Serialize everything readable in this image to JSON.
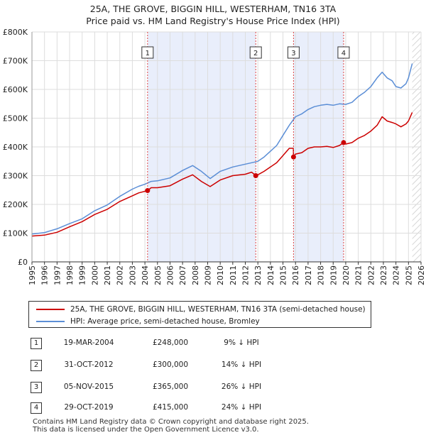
{
  "title_line1": "25A, THE GROVE, BIGGIN HILL, WESTERHAM, TN16 3TA",
  "title_line2": "Price paid vs. HM Land Registry's House Price Index (HPI)",
  "chart_data": {
    "type": "line",
    "title": "25A, THE GROVE, BIGGIN HILL, WESTERHAM, TN16 3TA — Price paid vs. HM Land Registry's House Price Index (HPI)",
    "xlabel": "",
    "ylabel": "",
    "xlim": [
      1995,
      2026
    ],
    "ylim": [
      0,
      800000
    ],
    "y_ticks": [
      0,
      100000,
      200000,
      300000,
      400000,
      500000,
      600000,
      700000,
      800000
    ],
    "y_tick_labels": [
      "£0",
      "£100K",
      "£200K",
      "£300K",
      "£400K",
      "£500K",
      "£600K",
      "£700K",
      "£800K"
    ],
    "x_ticks": [
      1995,
      1996,
      1997,
      1998,
      1999,
      2000,
      2001,
      2002,
      2003,
      2004,
      2005,
      2006,
      2007,
      2008,
      2009,
      2010,
      2011,
      2012,
      2013,
      2014,
      2015,
      2016,
      2017,
      2018,
      2019,
      2020,
      2021,
      2022,
      2023,
      2024,
      2025,
      2026
    ],
    "x_tick_labels": [
      "1995",
      "1996",
      "1997",
      "1998",
      "1999",
      "2000",
      "2001",
      "2002",
      "2003",
      "2004",
      "2005",
      "2006",
      "2007",
      "2008",
      "2009",
      "2010",
      "2011",
      "2012",
      "2013",
      "2014",
      "2015",
      "2016",
      "2017",
      "2018",
      "2019",
      "2020",
      "2021",
      "2022",
      "2023",
      "2024",
      "2025",
      "2026"
    ],
    "grid": true,
    "ownership_periods": [
      [
        2004.21,
        2012.83
      ],
      [
        2015.84,
        2019.83
      ]
    ],
    "projection_start": 2025.3,
    "series": [
      {
        "name": "25A, THE GROVE, BIGGIN HILL, WESTERHAM, TN16 3TA (semi-detached house)",
        "color": "#cc0000",
        "x": [
          1995.0,
          1996.0,
          1997.0,
          1998.0,
          1999.0,
          2000.0,
          2001.0,
          2002.0,
          2003.0,
          2003.5,
          2004.21,
          2004.5,
          2005.0,
          2006.0,
          2007.0,
          2007.8,
          2008.5,
          2009.2,
          2010.0,
          2011.0,
          2012.0,
          2012.5,
          2012.83,
          2013.0,
          2013.5,
          2014.0,
          2014.5,
          2015.0,
          2015.5,
          2015.83,
          2015.84,
          2016.0,
          2016.5,
          2017.0,
          2017.5,
          2018.0,
          2018.5,
          2019.0,
          2019.5,
          2019.83,
          2020.0,
          2020.5,
          2021.0,
          2021.5,
          2022.0,
          2022.5,
          2022.9,
          2023.3,
          2023.7,
          2024.0,
          2024.4,
          2024.8,
          2025.0,
          2025.3
        ],
        "values": [
          90000,
          93000,
          103000,
          122000,
          140000,
          165000,
          183000,
          210000,
          230000,
          240000,
          248000,
          258000,
          258000,
          265000,
          288000,
          303000,
          280000,
          262000,
          285000,
          300000,
          305000,
          312000,
          300000,
          303000,
          315000,
          330000,
          345000,
          370000,
          395000,
          395000,
          365000,
          375000,
          380000,
          395000,
          400000,
          400000,
          402000,
          398000,
          405000,
          415000,
          410000,
          415000,
          430000,
          440000,
          455000,
          475000,
          505000,
          490000,
          485000,
          480000,
          470000,
          480000,
          490000,
          520000
        ]
      },
      {
        "name": "HPI: Average price, semi-detached house, Bromley",
        "color": "#5b8ed6",
        "x": [
          1995.0,
          1996.0,
          1997.0,
          1998.0,
          1999.0,
          2000.0,
          2001.0,
          2002.0,
          2003.0,
          2003.5,
          2004.0,
          2004.5,
          2005.0,
          2006.0,
          2007.0,
          2007.8,
          2008.5,
          2009.2,
          2010.0,
          2011.0,
          2012.0,
          2012.5,
          2013.0,
          2013.5,
          2014.0,
          2014.5,
          2015.0,
          2015.5,
          2016.0,
          2016.5,
          2017.0,
          2017.5,
          2018.0,
          2018.5,
          2019.0,
          2019.5,
          2020.0,
          2020.5,
          2021.0,
          2021.5,
          2022.0,
          2022.5,
          2022.9,
          2023.3,
          2023.7,
          2024.0,
          2024.4,
          2024.8,
          2025.0,
          2025.3
        ],
        "values": [
          97000,
          102000,
          115000,
          133000,
          150000,
          178000,
          198000,
          228000,
          253000,
          263000,
          270000,
          280000,
          282000,
          292000,
          318000,
          335000,
          315000,
          290000,
          315000,
          330000,
          340000,
          345000,
          350000,
          365000,
          385000,
          405000,
          440000,
          475000,
          505000,
          515000,
          530000,
          540000,
          545000,
          548000,
          545000,
          550000,
          548000,
          555000,
          575000,
          590000,
          610000,
          640000,
          660000,
          640000,
          630000,
          610000,
          605000,
          620000,
          640000,
          690000
        ]
      }
    ],
    "annotations": [
      {
        "label": "1",
        "x": 2004.21,
        "y": 248000
      },
      {
        "label": "2",
        "x": 2012.83,
        "y": 300000
      },
      {
        "label": "3",
        "x": 2015.84,
        "y": 365000
      },
      {
        "label": "4",
        "x": 2019.83,
        "y": 415000
      }
    ]
  },
  "legend": {
    "property_label": "25A, THE GROVE, BIGGIN HILL, WESTERHAM, TN16 3TA (semi-detached house)",
    "hpi_label": "HPI: Average price, semi-detached house, Bromley"
  },
  "transactions": [
    {
      "num": "1",
      "date": "19-MAR-2004",
      "price": "£248,000",
      "diff": "9% ↓ HPI"
    },
    {
      "num": "2",
      "date": "31-OCT-2012",
      "price": "£300,000",
      "diff": "14% ↓ HPI"
    },
    {
      "num": "3",
      "date": "05-NOV-2015",
      "price": "£365,000",
      "diff": "26% ↓ HPI"
    },
    {
      "num": "4",
      "date": "29-OCT-2019",
      "price": "£415,000",
      "diff": "24% ↓ HPI"
    }
  ],
  "footer": {
    "line1": "Contains HM Land Registry data © Crown copyright and database right 2025.",
    "line2": "This data is licensed under the Open Government Licence v3.0."
  }
}
